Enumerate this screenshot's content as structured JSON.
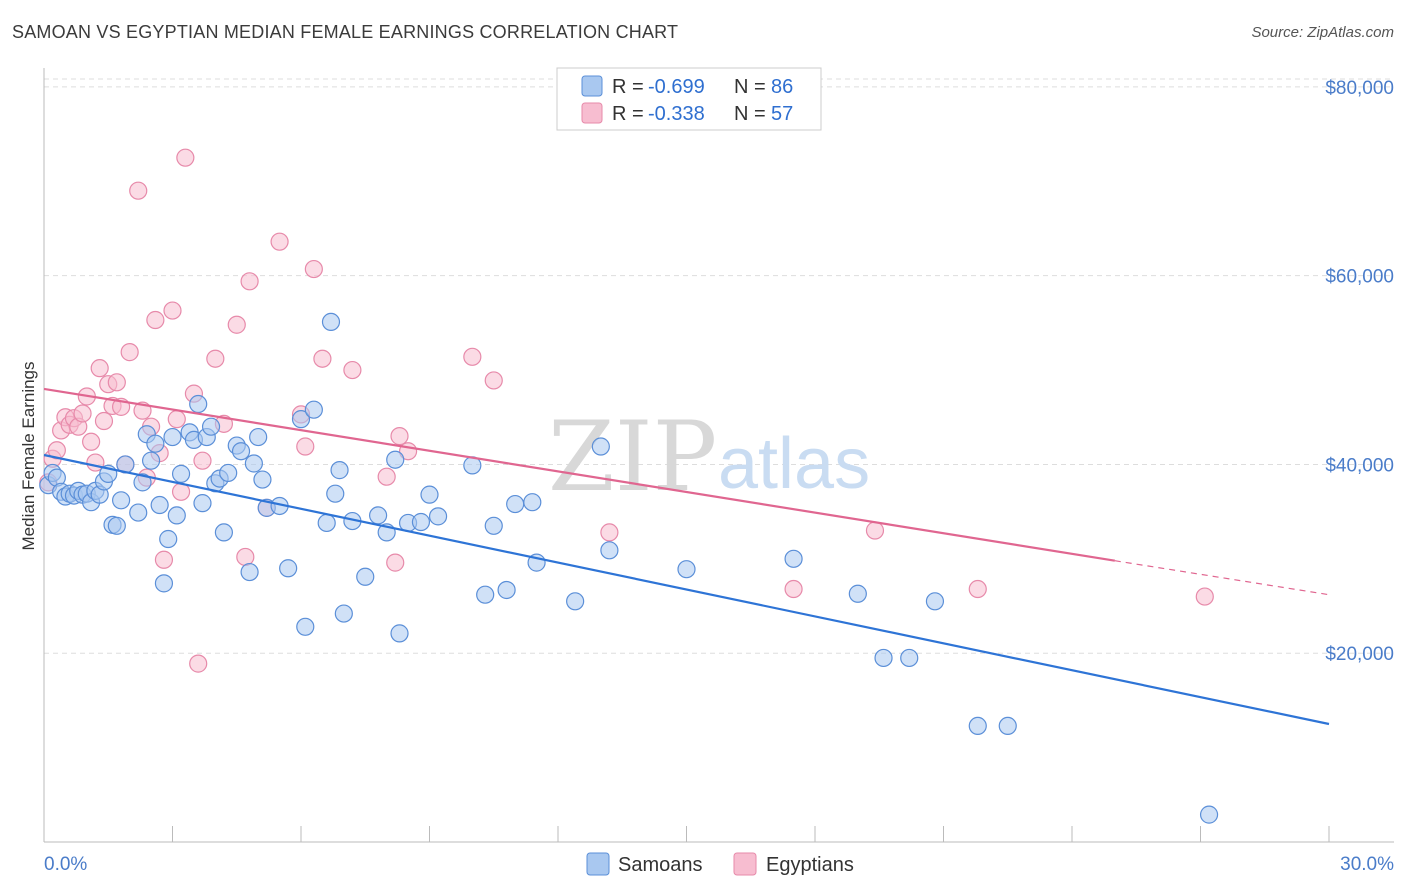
{
  "title": "SAMOAN VS EGYPTIAN MEDIAN FEMALE EARNINGS CORRELATION CHART",
  "source": "Source: ZipAtlas.com",
  "watermark": {
    "left": "ZIP",
    "right": "atlas"
  },
  "colors": {
    "samoan_fill": "#a9c8f0",
    "samoan_stroke": "#5b8fd8",
    "samoan_line": "#2e74d6",
    "egyptian_fill": "#f7bdd0",
    "egyptian_stroke": "#e78aaa",
    "egyptian_line": "#e06690",
    "tick_text": "#4a7cc9",
    "grid": "#dddddd"
  },
  "legend": {
    "row1": {
      "r_label": "R =",
      "r_value": "-0.699",
      "n_label": "N =",
      "n_value": "86"
    },
    "row2": {
      "r_label": "R =",
      "r_value": "-0.338",
      "n_label": "N =",
      "n_value": "57"
    }
  },
  "bottom_legend": {
    "samoans": "Samoans",
    "egyptians": "Egyptians"
  },
  "chart_data": {
    "type": "scatter",
    "ylabel": "Median Female Earnings",
    "xlim": [
      0,
      30
    ],
    "ylim": [
      0,
      82000
    ],
    "x_tick_labels": [
      "0.0%",
      "30.0%"
    ],
    "y_ticks": [
      20000,
      40000,
      60000,
      80000
    ],
    "y_tick_labels": [
      "$20,000",
      "$40,000",
      "$60,000",
      "$80,000"
    ],
    "grid": "horizontal dashed",
    "legend_position": "top-center",
    "series": [
      {
        "name": "Samoans",
        "trend": {
          "x": [
            0,
            30
          ],
          "y": [
            41000,
            12500
          ]
        },
        "points": [
          [
            0.1,
            37800
          ],
          [
            0.2,
            39100
          ],
          [
            0.3,
            38600
          ],
          [
            0.4,
            37100
          ],
          [
            0.5,
            36600
          ],
          [
            0.6,
            36900
          ],
          [
            0.7,
            36700
          ],
          [
            0.8,
            37200
          ],
          [
            0.9,
            36800
          ],
          [
            1.0,
            36900
          ],
          [
            1.1,
            36000
          ],
          [
            1.2,
            37200
          ],
          [
            1.3,
            36800
          ],
          [
            1.4,
            38200
          ],
          [
            1.5,
            39000
          ],
          [
            1.6,
            33600
          ],
          [
            1.7,
            33500
          ],
          [
            1.8,
            36200
          ],
          [
            1.9,
            40000
          ],
          [
            2.2,
            34900
          ],
          [
            2.3,
            38100
          ],
          [
            2.4,
            43200
          ],
          [
            2.5,
            40400
          ],
          [
            2.6,
            42200
          ],
          [
            2.7,
            35700
          ],
          [
            2.8,
            27400
          ],
          [
            2.9,
            32100
          ],
          [
            3.0,
            42900
          ],
          [
            3.1,
            34600
          ],
          [
            3.2,
            39000
          ],
          [
            3.4,
            43400
          ],
          [
            3.5,
            42600
          ],
          [
            3.6,
            46400
          ],
          [
            3.7,
            35900
          ],
          [
            3.8,
            42900
          ],
          [
            3.9,
            44000
          ],
          [
            4.0,
            38000
          ],
          [
            4.1,
            38500
          ],
          [
            4.2,
            32800
          ],
          [
            4.3,
            39100
          ],
          [
            4.5,
            42000
          ],
          [
            4.6,
            41400
          ],
          [
            4.8,
            28600
          ],
          [
            4.9,
            40100
          ],
          [
            5.0,
            42900
          ],
          [
            5.1,
            38400
          ],
          [
            5.2,
            35400
          ],
          [
            5.5,
            35600
          ],
          [
            5.7,
            29000
          ],
          [
            6.0,
            44800
          ],
          [
            6.1,
            22800
          ],
          [
            6.3,
            45800
          ],
          [
            6.6,
            33800
          ],
          [
            6.7,
            55100
          ],
          [
            6.8,
            36900
          ],
          [
            6.9,
            39400
          ],
          [
            7.0,
            24200
          ],
          [
            7.2,
            34000
          ],
          [
            7.5,
            28100
          ],
          [
            7.8,
            34600
          ],
          [
            8.0,
            32800
          ],
          [
            8.2,
            40500
          ],
          [
            8.3,
            22100
          ],
          [
            8.5,
            33800
          ],
          [
            8.8,
            33900
          ],
          [
            9.0,
            36800
          ],
          [
            9.2,
            34500
          ],
          [
            10.0,
            39900
          ],
          [
            10.3,
            26200
          ],
          [
            10.5,
            33500
          ],
          [
            10.8,
            26700
          ],
          [
            11.0,
            35800
          ],
          [
            11.4,
            36000
          ],
          [
            11.5,
            29600
          ],
          [
            12.4,
            25500
          ],
          [
            13.0,
            41900
          ],
          [
            13.2,
            30900
          ],
          [
            15.0,
            28900
          ],
          [
            17.5,
            30000
          ],
          [
            19.0,
            26300
          ],
          [
            19.6,
            19500
          ],
          [
            20.2,
            19500
          ],
          [
            20.8,
            25500
          ],
          [
            21.8,
            12300
          ],
          [
            22.5,
            12300
          ],
          [
            27.2,
            2900
          ]
        ]
      },
      {
        "name": "Egyptians",
        "trend": {
          "x": [
            0,
            25
          ],
          "y": [
            48000,
            29800
          ]
        },
        "trend_dashed": {
          "x": [
            25,
            30
          ],
          "y": [
            29800,
            26200
          ]
        },
        "points": [
          [
            0.1,
            38100
          ],
          [
            0.2,
            40600
          ],
          [
            0.3,
            41500
          ],
          [
            0.4,
            43600
          ],
          [
            0.5,
            45000
          ],
          [
            0.6,
            44200
          ],
          [
            0.7,
            44900
          ],
          [
            0.8,
            44000
          ],
          [
            0.9,
            45400
          ],
          [
            1.0,
            47200
          ],
          [
            1.1,
            42400
          ],
          [
            1.2,
            40200
          ],
          [
            1.3,
            50200
          ],
          [
            1.4,
            44600
          ],
          [
            1.5,
            48500
          ],
          [
            1.6,
            46200
          ],
          [
            1.7,
            48700
          ],
          [
            1.8,
            46100
          ],
          [
            1.9,
            40000
          ],
          [
            2.0,
            51900
          ],
          [
            2.2,
            69000
          ],
          [
            2.3,
            45700
          ],
          [
            2.4,
            38600
          ],
          [
            2.5,
            44000
          ],
          [
            2.6,
            55300
          ],
          [
            2.7,
            41200
          ],
          [
            2.8,
            29900
          ],
          [
            3.0,
            56300
          ],
          [
            3.1,
            44800
          ],
          [
            3.2,
            37100
          ],
          [
            3.3,
            72500
          ],
          [
            3.5,
            47500
          ],
          [
            3.6,
            18900
          ],
          [
            3.7,
            40400
          ],
          [
            4.0,
            51200
          ],
          [
            4.2,
            44300
          ],
          [
            4.5,
            54800
          ],
          [
            4.7,
            30200
          ],
          [
            4.8,
            59400
          ],
          [
            5.2,
            35400
          ],
          [
            5.5,
            63600
          ],
          [
            6.0,
            45300
          ],
          [
            6.1,
            41900
          ],
          [
            6.3,
            60700
          ],
          [
            6.5,
            51200
          ],
          [
            7.2,
            50000
          ],
          [
            8.0,
            38700
          ],
          [
            8.2,
            29600
          ],
          [
            8.3,
            43000
          ],
          [
            8.5,
            41400
          ],
          [
            10.0,
            51400
          ],
          [
            10.5,
            48900
          ],
          [
            13.2,
            32800
          ],
          [
            17.5,
            26800
          ],
          [
            19.4,
            33000
          ],
          [
            21.8,
            26800
          ],
          [
            27.1,
            26000
          ]
        ]
      }
    ]
  }
}
